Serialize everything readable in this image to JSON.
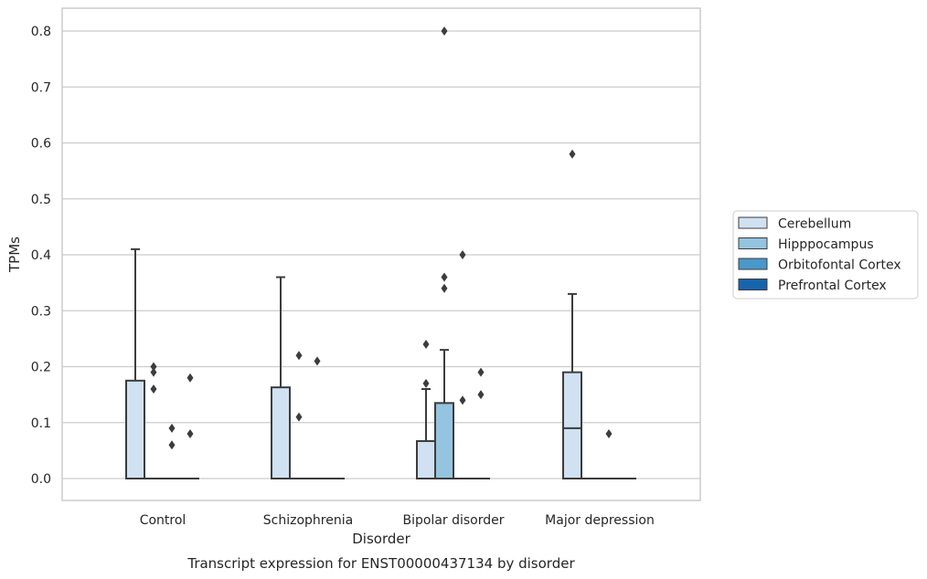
{
  "chart_data": {
    "type": "box",
    "title": "Transcript expression for ENST00000437134 by disorder",
    "xlabel": "Disorder",
    "ylabel": "TPMs",
    "categories": [
      "Control",
      "Schizophrenia",
      "Bipolar disorder",
      "Major depression"
    ],
    "ylim": [
      -0.04,
      0.84
    ],
    "yticks": [
      0.0,
      0.1,
      0.2,
      0.3,
      0.4,
      0.5,
      0.6,
      0.7,
      0.8
    ],
    "grid": "horizontal",
    "legend_position": "right",
    "series": [
      {
        "name": "Cerebellum",
        "color": "#d0e1f2",
        "boxes": [
          {
            "category": "Control",
            "q1": 0.0,
            "median": 0.0,
            "q3": 0.175,
            "whisker_low": 0.0,
            "whisker_high": 0.41,
            "outliers": []
          },
          {
            "category": "Schizophrenia",
            "q1": 0.0,
            "median": 0.0,
            "q3": 0.163,
            "whisker_low": 0.0,
            "whisker_high": 0.36,
            "outliers": []
          },
          {
            "category": "Bipolar disorder",
            "q1": 0.0,
            "median": 0.0,
            "q3": 0.067,
            "whisker_low": 0.0,
            "whisker_high": 0.16,
            "outliers": [
              0.17,
              0.24
            ]
          },
          {
            "category": "Major depression",
            "q1": 0.0,
            "median": 0.09,
            "q3": 0.19,
            "whisker_low": 0.0,
            "whisker_high": 0.33,
            "outliers": [
              0.58
            ]
          }
        ]
      },
      {
        "name": "Hipppocampus",
        "color": "#94c4df",
        "boxes": [
          {
            "category": "Control",
            "q1": 0.0,
            "median": 0.0,
            "q3": 0.0,
            "whisker_low": 0.0,
            "whisker_high": 0.0,
            "outliers": [
              0.16,
              0.19,
              0.2
            ]
          },
          {
            "category": "Schizophrenia",
            "q1": 0.0,
            "median": 0.0,
            "q3": 0.0,
            "whisker_low": 0.0,
            "whisker_high": 0.0,
            "outliers": [
              0.11,
              0.22
            ]
          },
          {
            "category": "Bipolar disorder",
            "q1": 0.0,
            "median": 0.0,
            "q3": 0.135,
            "whisker_low": 0.0,
            "whisker_high": 0.23,
            "outliers": [
              0.34,
              0.36,
              0.8
            ]
          },
          {
            "category": "Major depression",
            "q1": 0.0,
            "median": 0.0,
            "q3": 0.0,
            "whisker_low": 0.0,
            "whisker_high": 0.0,
            "outliers": []
          }
        ]
      },
      {
        "name": "Orbitofontal Cortex",
        "color": "#4a98c9",
        "boxes": [
          {
            "category": "Control",
            "q1": 0.0,
            "median": 0.0,
            "q3": 0.0,
            "whisker_low": 0.0,
            "whisker_high": 0.0,
            "outliers": [
              0.06,
              0.09
            ]
          },
          {
            "category": "Schizophrenia",
            "q1": 0.0,
            "median": 0.0,
            "q3": 0.0,
            "whisker_low": 0.0,
            "whisker_high": 0.0,
            "outliers": [
              0.21
            ]
          },
          {
            "category": "Bipolar disorder",
            "q1": 0.0,
            "median": 0.0,
            "q3": 0.0,
            "whisker_low": 0.0,
            "whisker_high": 0.0,
            "outliers": [
              0.14,
              0.4
            ]
          },
          {
            "category": "Major depression",
            "q1": 0.0,
            "median": 0.0,
            "q3": 0.0,
            "whisker_low": 0.0,
            "whisker_high": 0.0,
            "outliers": [
              0.08
            ]
          }
        ]
      },
      {
        "name": "Prefrontal Cortex",
        "color": "#1764ab",
        "boxes": [
          {
            "category": "Control",
            "q1": 0.0,
            "median": 0.0,
            "q3": 0.0,
            "whisker_low": 0.0,
            "whisker_high": 0.0,
            "outliers": [
              0.08,
              0.18
            ]
          },
          {
            "category": "Schizophrenia",
            "q1": 0.0,
            "median": 0.0,
            "q3": 0.0,
            "whisker_low": 0.0,
            "whisker_high": 0.0,
            "outliers": []
          },
          {
            "category": "Bipolar disorder",
            "q1": 0.0,
            "median": 0.0,
            "q3": 0.0,
            "whisker_low": 0.0,
            "whisker_high": 0.0,
            "outliers": [
              0.15,
              0.19
            ]
          },
          {
            "category": "Major depression",
            "q1": 0.0,
            "median": 0.0,
            "q3": 0.0,
            "whisker_low": 0.0,
            "whisker_high": 0.0,
            "outliers": []
          }
        ]
      }
    ]
  }
}
